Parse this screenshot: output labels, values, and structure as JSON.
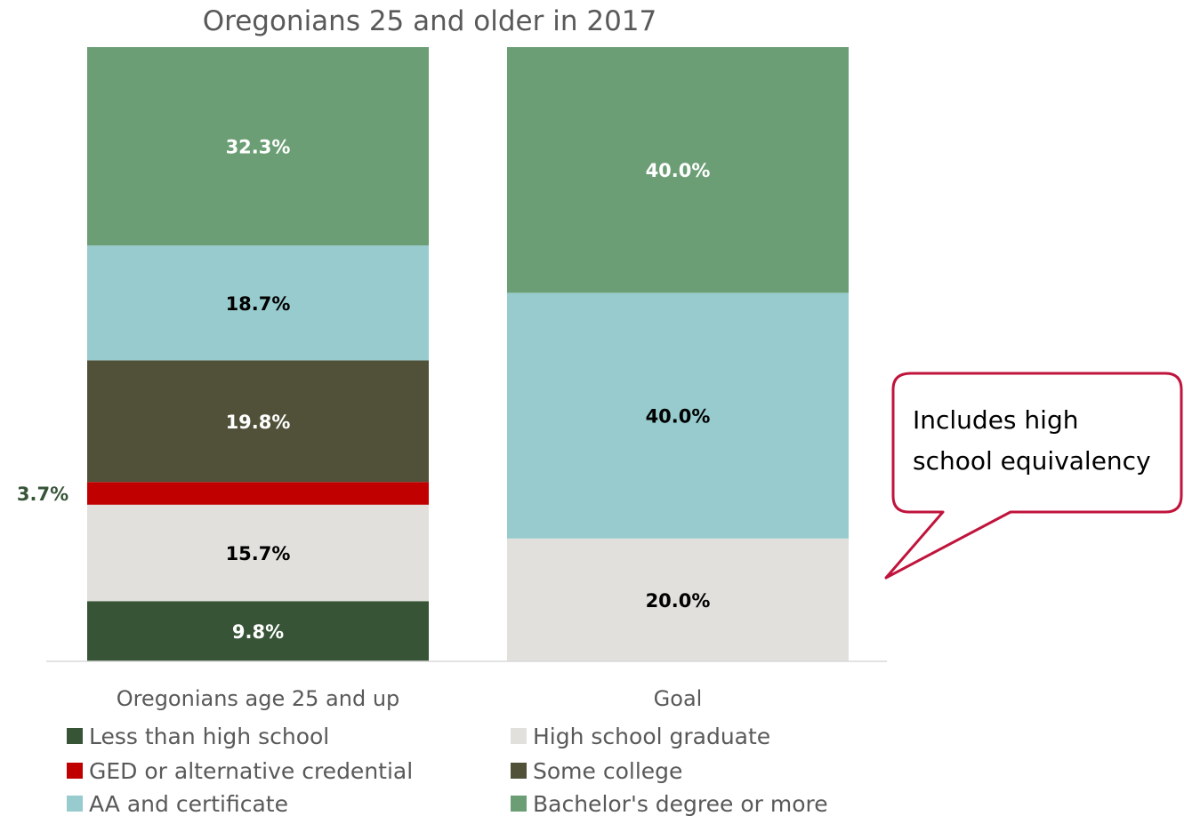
{
  "chart_data": {
    "type": "bar",
    "stacked": true,
    "title": "Oregonians 25 and older in 2017",
    "categories": [
      "Oregonians age 25 and up",
      "Goal"
    ],
    "series": [
      {
        "name": "Less than high school",
        "values": [
          9.8,
          0
        ],
        "color": "#375437",
        "label_color": "#ffffff",
        "labels": [
          "9.8%",
          null
        ]
      },
      {
        "name": "High school graduate",
        "values": [
          15.7,
          20.0
        ],
        "color": "#e1e0dc",
        "label_color": "#000000",
        "labels": [
          "15.7%",
          "20.0%"
        ]
      },
      {
        "name": "GED or alternative credential",
        "values": [
          3.7,
          0
        ],
        "color": "#c00000",
        "label_color": "#375437",
        "labels": [
          "3.7%",
          null
        ]
      },
      {
        "name": "Some college",
        "values": [
          19.8,
          0
        ],
        "color": "#51513a",
        "label_color": "#ffffff",
        "labels": [
          "19.8%",
          null
        ]
      },
      {
        "name": "AA and certificate",
        "values": [
          18.7,
          40.0
        ],
        "color": "#97cbcd",
        "label_color": "#000000",
        "labels": [
          "18.7%",
          "40.0%"
        ]
      },
      {
        "name": "Bachelor's degree or more",
        "values": [
          32.3,
          40.0
        ],
        "color": "#6b9e74",
        "label_color": "#ffffff",
        "labels": [
          "32.3%",
          "40.0%"
        ]
      }
    ],
    "legend": {
      "position": "bottom",
      "order": [
        "Less than high school",
        "High school graduate",
        "GED or alternative credential",
        "Some college",
        "AA and certificate",
        "Bachelor's degree or more"
      ]
    },
    "ylim": [
      0,
      100
    ],
    "grid": false,
    "annotations": [
      {
        "text": "Includes high school equivalency",
        "type": "callout",
        "target": "High school graduate (Goal)"
      }
    ]
  },
  "callout": {
    "line1": "Includes high",
    "line2": "school equivalency",
    "border_color": "#c0143c"
  }
}
